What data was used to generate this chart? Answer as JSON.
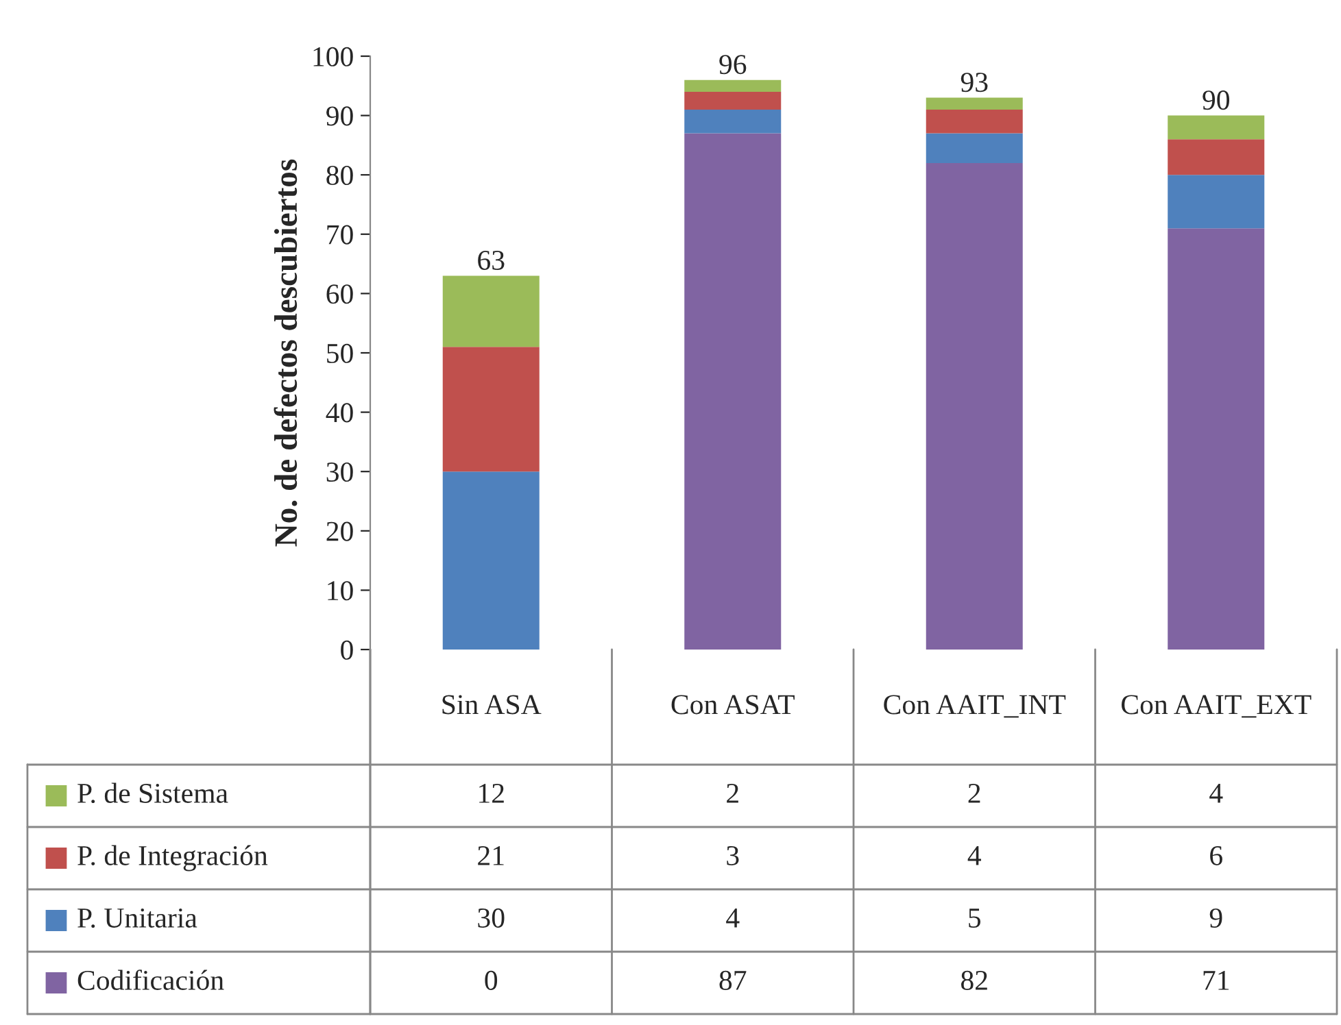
{
  "chart_data": {
    "type": "bar",
    "stacked": true,
    "ylabel": "No. de defectos descubiertos",
    "categories": [
      "Sin ASA",
      "Con ASAT",
      "Con AAIT_INT",
      "Con AAIT_EXT"
    ],
    "series": [
      {
        "name": "Codificación",
        "color": "#8064a2",
        "values": [
          0,
          87,
          82,
          71
        ]
      },
      {
        "name": "P. Unitaria",
        "color": "#4f81bd",
        "values": [
          30,
          4,
          5,
          9
        ]
      },
      {
        "name": "P. de Integración",
        "color": "#c0504d",
        "values": [
          21,
          3,
          4,
          6
        ]
      },
      {
        "name": "P. de Sistema",
        "color": "#9bbb59",
        "values": [
          12,
          2,
          2,
          4
        ]
      }
    ],
    "totals": [
      "63",
      "96",
      "93",
      "90"
    ],
    "data_labels": true,
    "legend": "bottom",
    "grid": false,
    "ylim": [
      0,
      100
    ],
    "yticks": [
      0,
      10,
      20,
      30,
      40,
      50,
      60,
      70,
      80,
      90,
      100
    ]
  }
}
